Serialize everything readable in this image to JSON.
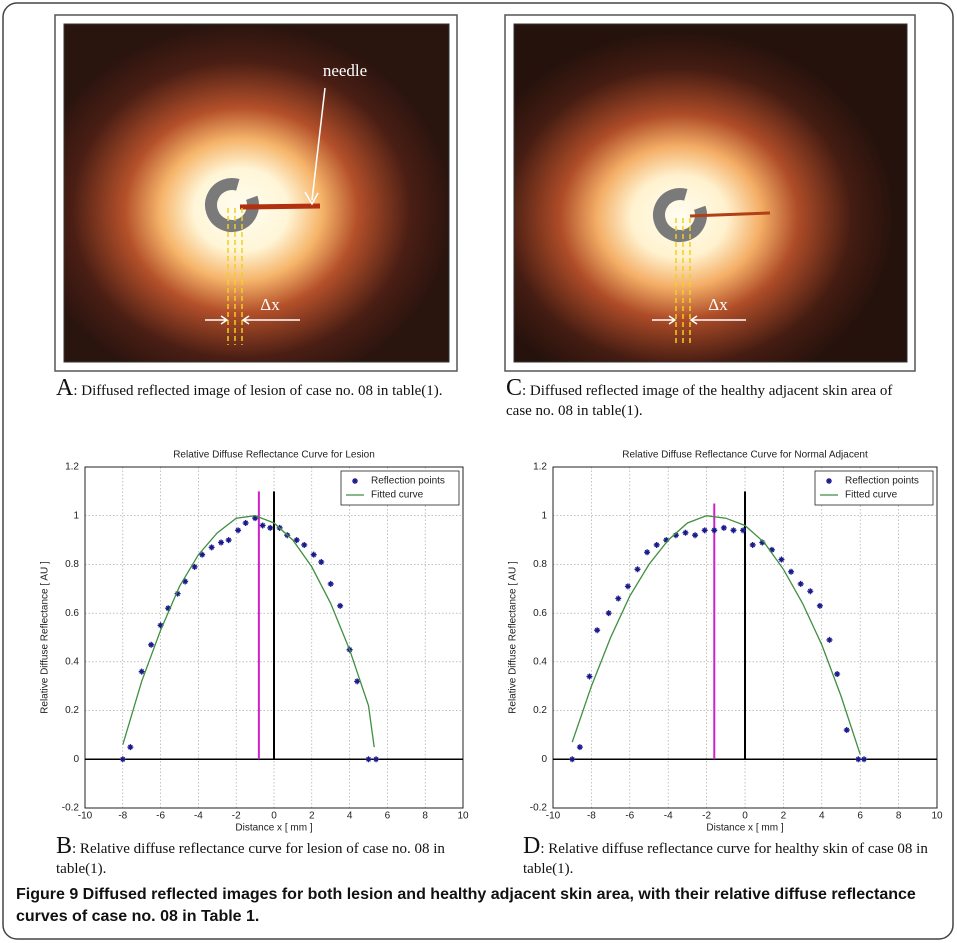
{
  "panels": [
    {
      "letter": "A",
      "caption": ": Diffused reflected image of lesion of case no. 08 in table(1).",
      "annotations": [
        "needle",
        "Δx"
      ]
    },
    {
      "letter": "C",
      "caption": ": Diffused reflected image of the healthy adjacent skin area of case no. 08 in table(1).",
      "annotations": [
        "Δx"
      ]
    }
  ],
  "chart_data": [
    {
      "type": "scatter",
      "title": "Relative Diffuse Reflectance Curve for Lesion",
      "letter": "B",
      "caption": ": Relative diffuse reflectance curve for lesion of case no. 08 in table(1).",
      "x_label": "Distance x [ mm ]",
      "y_label": "Relative Diffuse Reflectance [ AU ]",
      "xlim": [
        -10,
        10
      ],
      "ylim": [
        -0.2,
        1.2
      ],
      "xticks": [
        -10,
        -8,
        -6,
        -4,
        -2,
        0,
        2,
        4,
        6,
        8,
        10
      ],
      "yticks": [
        -0.2,
        0,
        0.2,
        0.4,
        0.6,
        0.8,
        1,
        1.2
      ],
      "grid": true,
      "legend": "upper-right",
      "hline": 0,
      "series": [
        {
          "name": "Reflection points",
          "color": "#1a1a8c",
          "kind": "markers",
          "x": [
            -8,
            -7.6,
            -7,
            -6.5,
            -6,
            -5.6,
            -5.1,
            -4.7,
            -4.2,
            -3.8,
            -3.3,
            -2.8,
            -2.4,
            -1.9,
            -1.5,
            -1,
            -0.6,
            -0.2,
            0.3,
            0.7,
            1.2,
            1.6,
            2.1,
            2.5,
            3,
            3.5,
            4,
            4.4,
            5,
            5.4
          ],
          "values": [
            0,
            0.05,
            0.36,
            0.47,
            0.55,
            0.62,
            0.68,
            0.73,
            0.79,
            0.84,
            0.87,
            0.89,
            0.9,
            0.94,
            0.97,
            0.99,
            0.96,
            0.95,
            0.95,
            0.92,
            0.9,
            0.88,
            0.84,
            0.81,
            0.72,
            0.63,
            0.45,
            0.32,
            0,
            0
          ]
        },
        {
          "name": "Fitted curve",
          "color": "#3f8f3f",
          "kind": "line",
          "x": [
            -8,
            -7,
            -6,
            -5,
            -4,
            -3,
            -2,
            -1,
            0,
            1,
            2,
            3,
            4,
            5,
            5.3
          ],
          "values": [
            0.06,
            0.32,
            0.53,
            0.71,
            0.84,
            0.93,
            0.99,
            1.0,
            0.97,
            0.9,
            0.79,
            0.64,
            0.45,
            0.22,
            0.05
          ]
        }
      ],
      "reference_lines": [
        {
          "x": -0.8,
          "top": 1.1,
          "color": "#cc22cc"
        },
        {
          "x": 0,
          "top": 1.1,
          "color": "#000000"
        }
      ]
    },
    {
      "type": "scatter",
      "title": "Relative Diffuse Reflectance Curve for Normal Adjacent",
      "letter": "D",
      "caption": ": Relative diffuse reflectance curve for  healthy skin of case 08 in table(1).",
      "x_label": "Distance x [ mm ]",
      "y_label": "Relative Diffuse Reflectance [ AU ]",
      "xlim": [
        -10,
        10
      ],
      "ylim": [
        -0.2,
        1.2
      ],
      "xticks": [
        -10,
        -8,
        -6,
        -4,
        -2,
        0,
        2,
        4,
        6,
        8,
        10
      ],
      "yticks": [
        -0.2,
        0,
        0.2,
        0.4,
        0.6,
        0.8,
        1,
        1.2
      ],
      "grid": true,
      "legend": "upper-right",
      "hline": 0,
      "series": [
        {
          "name": "Reflection points",
          "color": "#1a1a8c",
          "kind": "markers",
          "x": [
            -9,
            -8.6,
            -8.1,
            -7.7,
            -7.1,
            -6.6,
            -6.1,
            -5.6,
            -5.1,
            -4.6,
            -4.1,
            -3.6,
            -3.1,
            -2.6,
            -2.1,
            -1.6,
            -1.1,
            -0.6,
            -0.1,
            0.4,
            0.9,
            1.4,
            1.9,
            2.4,
            2.9,
            3.4,
            3.9,
            4.4,
            4.8,
            5.3,
            5.9,
            6.2
          ],
          "values": [
            0,
            0.05,
            0.34,
            0.53,
            0.6,
            0.66,
            0.71,
            0.78,
            0.85,
            0.88,
            0.9,
            0.92,
            0.93,
            0.92,
            0.94,
            0.94,
            0.95,
            0.94,
            0.94,
            0.88,
            0.89,
            0.86,
            0.82,
            0.77,
            0.72,
            0.69,
            0.63,
            0.49,
            0.35,
            0.12,
            0,
            0
          ]
        },
        {
          "name": "Fitted curve",
          "color": "#3f8f3f",
          "kind": "line",
          "x": [
            -9,
            -8,
            -7,
            -6,
            -5,
            -4,
            -3,
            -2,
            -1,
            0,
            1,
            2,
            3,
            4,
            5,
            6
          ],
          "values": [
            0.07,
            0.3,
            0.5,
            0.67,
            0.8,
            0.9,
            0.97,
            1.0,
            0.99,
            0.96,
            0.89,
            0.78,
            0.64,
            0.47,
            0.26,
            0.02
          ]
        }
      ],
      "reference_lines": [
        {
          "x": -1.6,
          "top": 1.05,
          "color": "#cc22cc"
        },
        {
          "x": 0,
          "top": 1.1,
          "color": "#000000"
        }
      ]
    }
  ],
  "caption": "Figure 9 Diffused reflected images for both lesion and healthy adjacent skin area, with their relative diffuse reflectance curves of case no. 08 in Table 1."
}
